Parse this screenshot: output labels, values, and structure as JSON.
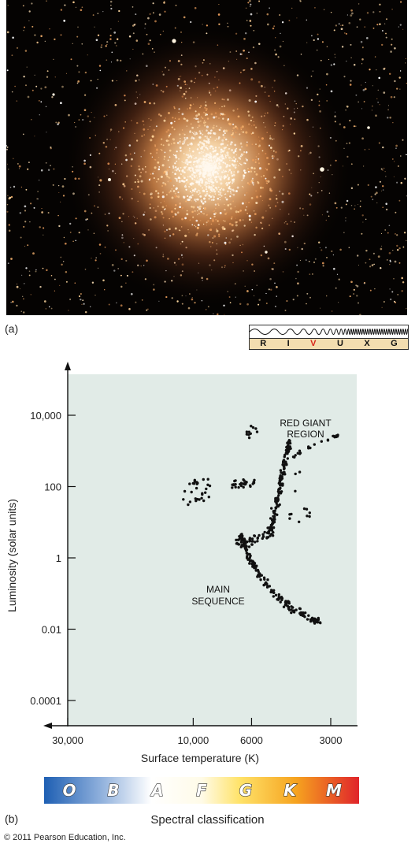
{
  "panel_a_label": "(a)",
  "panel_b_label": "(b)",
  "spectrum": {
    "bands": [
      "R",
      "I",
      "V",
      "U",
      "X",
      "G"
    ],
    "highlighted": "V",
    "highlight_color": "#d8261c"
  },
  "chart_data": {
    "type": "scatter",
    "xlabel": "Surface temperature (K)",
    "ylabel": "Luminosity (solar units)",
    "x_scale": "log (reversed, temperature decreases to the right)",
    "y_scale": "log",
    "x_ticks": [
      {
        "value": 30000,
        "label": "30,000"
      },
      {
        "value": 10000,
        "label": "10,000"
      },
      {
        "value": 6000,
        "label": "6000"
      },
      {
        "value": 3000,
        "label": "3000"
      }
    ],
    "y_ticks": [
      {
        "value": 10000,
        "label": "10,000"
      },
      {
        "value": 100,
        "label": "100"
      },
      {
        "value": 1,
        "label": "1"
      },
      {
        "value": 0.01,
        "label": "0.01"
      },
      {
        "value": 0.0001,
        "label": "0.0001"
      }
    ],
    "annotations": [
      {
        "text": "RED GIANT REGION",
        "lines": [
          "RED GIANT",
          "REGION"
        ]
      },
      {
        "text": "MAIN SEQUENCE",
        "lines": [
          "MAIN",
          "SEQUENCE"
        ]
      }
    ],
    "background": "#e1ebe7",
    "series": [
      {
        "groups": [
          {
            "region": "horizontal branch (blue)",
            "temp_range_K": [
              8500,
              11000
            ],
            "luminosity_range": [
              30,
              200
            ],
            "count": 30
          },
          {
            "region": "horizontal branch",
            "temp_range_K": [
              5800,
              7200
            ],
            "luminosity_range": [
              90,
              160
            ],
            "count": 30
          },
          {
            "region": "subgiant / turnoff",
            "temp_range_K": [
              5000,
              6800
            ],
            "luminosity_range": [
              1,
              6
            ],
            "count": 60
          },
          {
            "region": "red giant branch",
            "temp_range_K": [
              4300,
              5100
            ],
            "luminosity_range": [
              5,
              1500
            ],
            "count": 140
          },
          {
            "region": "asymptotic / red giant tip",
            "temp_range_K": [
              2800,
              4200
            ],
            "luminosity_range": [
              700,
              3000
            ],
            "count": 22
          },
          {
            "region": "main sequence",
            "temp_range_K": [
              3300,
              6600
            ],
            "luminosity_range": [
              0.015,
              5
            ],
            "count": 170
          },
          {
            "region": "blue stragglers",
            "temp_range_K": [
              5700,
              6300
            ],
            "luminosity_range": [
              2000,
              6500
            ],
            "count": 10
          },
          {
            "region": "scattered",
            "temp_range_K": [
              3400,
              4300
            ],
            "luminosity_range": [
              10,
              400
            ],
            "count": 12
          }
        ]
      }
    ]
  },
  "spectral": {
    "title": "Spectral classification",
    "classes": [
      "O",
      "B",
      "A",
      "F",
      "G",
      "K",
      "M"
    ]
  },
  "copyright": "© 2011 Pearson Education, Inc."
}
